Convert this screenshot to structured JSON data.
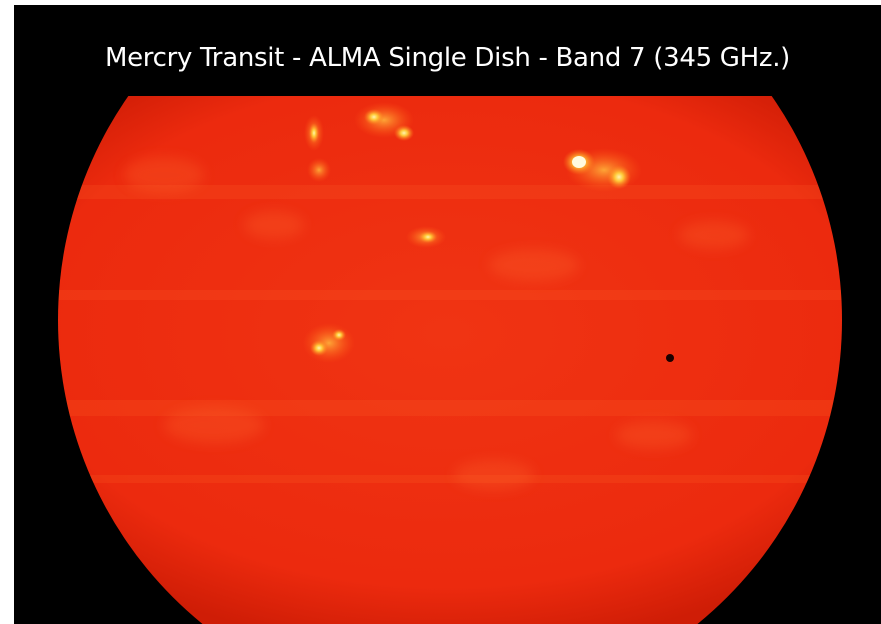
{
  "image": {
    "caption": "Mercry Transit - ALMA Single Dish - Band 7 (345 GHz.)",
    "subject": "solar-disk-millimeter-image",
    "colors": {
      "background": "#000000",
      "disk_base": "#ef2a0f",
      "disk_edge": "#c81a05",
      "bright_region": "#ffd23a",
      "bright_core": "#fff6c8",
      "mercury": "#1a0000",
      "caption_text": "#ffffff"
    }
  }
}
